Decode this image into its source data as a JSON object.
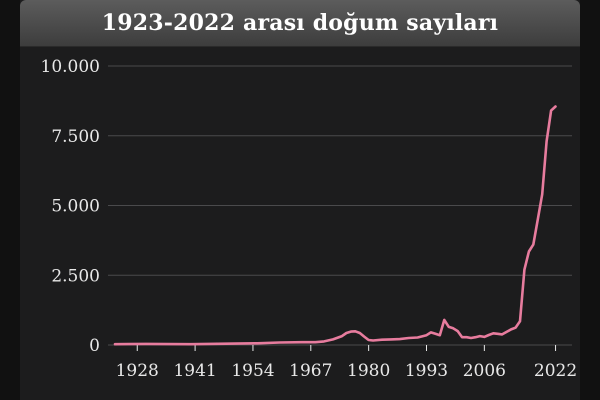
{
  "colors": {
    "background": "#1c1c1d",
    "line": "#e77c9e",
    "grid": "#4a4a4c",
    "text": "#e8e8e8"
  },
  "chart_data": {
    "type": "line",
    "title": "1923-2022 arası doğum sayıları",
    "xlabel": "",
    "ylabel": "",
    "xlim": [
      1923,
      2023
    ],
    "ylim": [
      0,
      10000
    ],
    "grid": "horizontal",
    "legend": "none",
    "x_tick_labels": [
      "1928",
      "1941",
      "1954",
      "1967",
      "1980",
      "1993",
      "2006",
      "2022"
    ],
    "x_tick_values": [
      1928,
      1941,
      1954,
      1967,
      1980,
      1993,
      2006,
      2022
    ],
    "y_tick_labels": [
      "0",
      "2.500",
      "5.000",
      "7.500",
      "10.000"
    ],
    "y_tick_values": [
      0,
      2500,
      5000,
      7500,
      10000
    ],
    "series": [
      {
        "x": [
          1923,
          1930,
          1940,
          1950,
          1955,
          1960,
          1965,
          1968,
          1970,
          1972,
          1974,
          1975,
          1976,
          1977,
          1978,
          1979,
          1980,
          1981,
          1983,
          1985,
          1987,
          1989,
          1991,
          1993,
          1994,
          1995,
          1996,
          1997,
          1998,
          1999,
          2000,
          2001,
          2002,
          2003,
          2004,
          2005,
          2006,
          2007,
          2008,
          2009,
          2010,
          2011,
          2012,
          2013,
          2014,
          2015,
          2016,
          2017,
          2018,
          2019,
          2020,
          2021,
          2022
        ],
        "y": [
          30,
          40,
          30,
          50,
          60,
          90,
          100,
          100,
          130,
          200,
          320,
          430,
          480,
          490,
          430,
          300,
          180,
          160,
          190,
          200,
          210,
          250,
          270,
          350,
          450,
          400,
          350,
          900,
          650,
          600,
          500,
          280,
          280,
          250,
          280,
          320,
          290,
          360,
          420,
          400,
          380,
          470,
          560,
          620,
          850,
          2700,
          3350,
          3600,
          4500,
          5400,
          7300,
          8400,
          8550
        ]
      }
    ]
  }
}
